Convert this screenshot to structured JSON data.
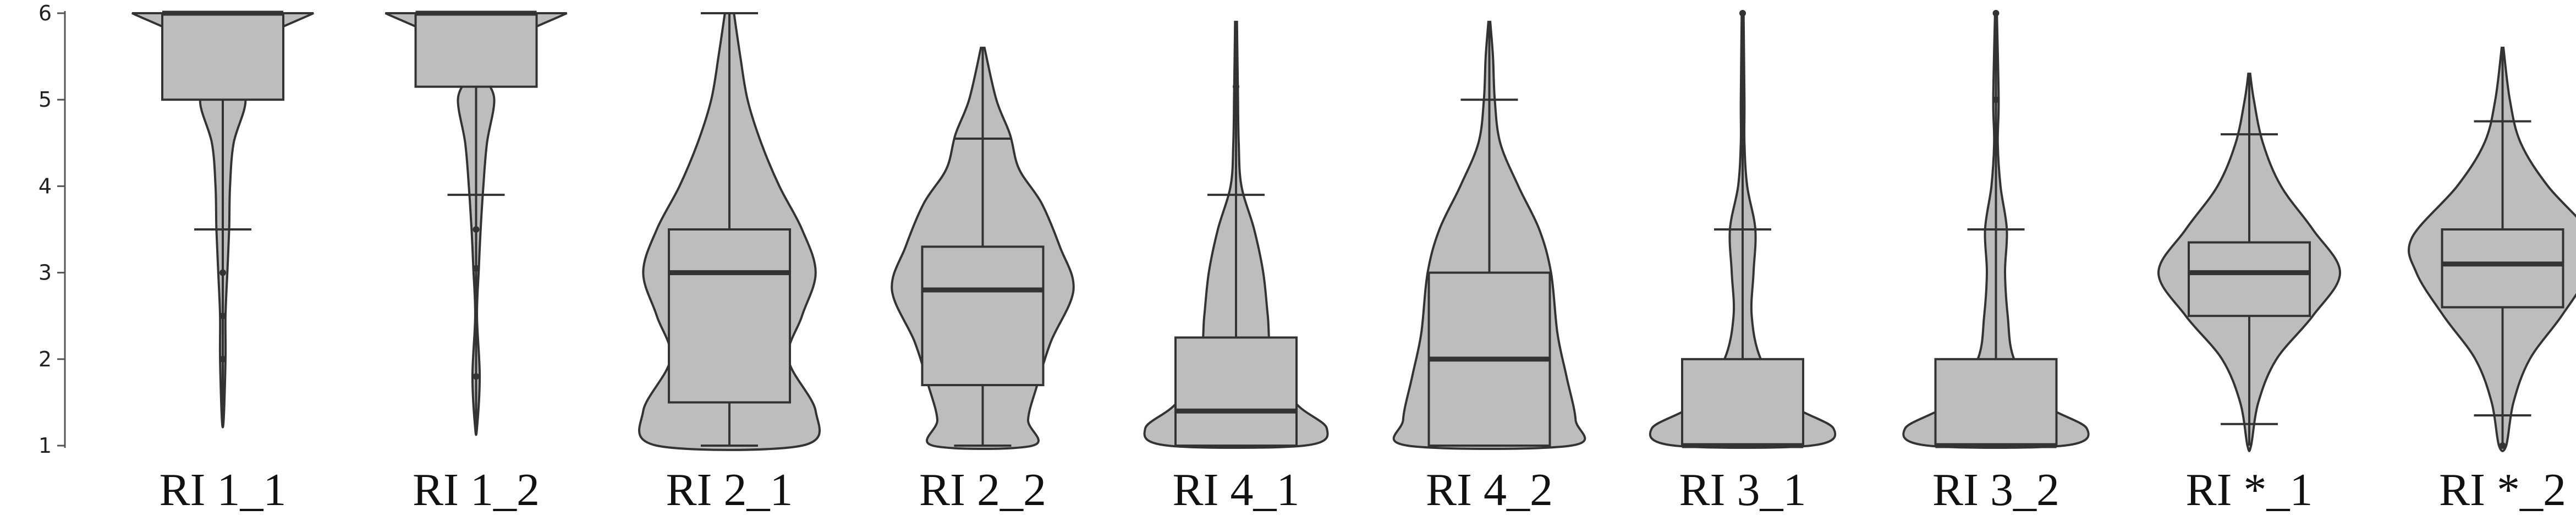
{
  "chart_data": {
    "type": "violin",
    "ylim": [
      1,
      6
    ],
    "yticks": [
      "1",
      "2",
      "3",
      "4",
      "5",
      "6"
    ],
    "categories": [
      "RI 1_1",
      "RI 1_2",
      "RI 2_1",
      "RI 2_2",
      "RI 4_1",
      "RI 4_2",
      "RI 3_1",
      "RI 3_2",
      "RI *_1",
      "RI *_2"
    ],
    "series": [
      {
        "label": "RI 1_1",
        "q1": 5.0,
        "median": 6.0,
        "q3": 6.0,
        "whisker_low": 3.5,
        "whisker_high": 6.0,
        "min": 1.3,
        "max": 6.0,
        "outliers": [
          3.0,
          2.5,
          2.0
        ],
        "density": [
          [
            1.3,
            0.01
          ],
          [
            2.0,
            0.03
          ],
          [
            2.5,
            0.03
          ],
          [
            3.0,
            0.05
          ],
          [
            3.5,
            0.07
          ],
          [
            4.0,
            0.08
          ],
          [
            4.5,
            0.12
          ],
          [
            5.0,
            0.25
          ],
          [
            5.3,
            0.08
          ],
          [
            5.6,
            0.2
          ],
          [
            6.0,
            1.0
          ]
        ]
      },
      {
        "label": "RI 1_2",
        "q1": 5.15,
        "median": 6.0,
        "q3": 6.0,
        "whisker_low": 3.9,
        "whisker_high": 6.0,
        "min": 1.2,
        "max": 6.0,
        "outliers": [
          3.5,
          3.05,
          1.8
        ],
        "density": [
          [
            1.2,
            0.01
          ],
          [
            1.8,
            0.04
          ],
          [
            2.5,
            0.01
          ],
          [
            3.05,
            0.03
          ],
          [
            3.5,
            0.05
          ],
          [
            4.0,
            0.08
          ],
          [
            4.5,
            0.12
          ],
          [
            5.0,
            0.2
          ],
          [
            5.3,
            0.1
          ],
          [
            5.6,
            0.2
          ],
          [
            6.0,
            1.0
          ]
        ]
      },
      {
        "label": "RI 2_1",
        "q1": 1.5,
        "median": 3.0,
        "q3": 3.5,
        "whisker_low": 1.0,
        "whisker_high": 6.0,
        "min": 1.0,
        "max": 6.0,
        "outliers": [],
        "density": [
          [
            1.0,
            0.8
          ],
          [
            1.4,
            0.95
          ],
          [
            2.0,
            0.65
          ],
          [
            2.5,
            0.8
          ],
          [
            3.0,
            0.95
          ],
          [
            3.5,
            0.8
          ],
          [
            4.0,
            0.55
          ],
          [
            4.5,
            0.35
          ],
          [
            5.0,
            0.2
          ],
          [
            5.5,
            0.12
          ],
          [
            6.0,
            0.05
          ]
        ]
      },
      {
        "label": "RI 2_2",
        "q1": 1.7,
        "median": 2.8,
        "q3": 3.3,
        "whisker_low": 1.0,
        "whisker_high": 4.55,
        "min": 1.0,
        "max": 5.6,
        "outliers": [],
        "density": [
          [
            1.0,
            0.55
          ],
          [
            1.3,
            0.5
          ],
          [
            1.7,
            0.6
          ],
          [
            2.2,
            0.75
          ],
          [
            2.8,
            1.0
          ],
          [
            3.3,
            0.85
          ],
          [
            3.8,
            0.65
          ],
          [
            4.2,
            0.4
          ],
          [
            4.6,
            0.3
          ],
          [
            5.0,
            0.15
          ],
          [
            5.6,
            0.02
          ]
        ]
      },
      {
        "label": "RI 4_1",
        "q1": 1.0,
        "median": 1.4,
        "q3": 2.25,
        "whisker_low": 1.0,
        "whisker_high": 3.9,
        "min": 1.0,
        "max": 5.9,
        "outliers": [
          5.15
        ],
        "density": [
          [
            1.0,
            0.75
          ],
          [
            1.2,
            1.0
          ],
          [
            1.5,
            0.65
          ],
          [
            2.0,
            0.4
          ],
          [
            2.5,
            0.35
          ],
          [
            3.0,
            0.3
          ],
          [
            3.5,
            0.2
          ],
          [
            4.0,
            0.06
          ],
          [
            4.5,
            0.03
          ],
          [
            5.15,
            0.02
          ],
          [
            5.9,
            0.01
          ]
        ]
      },
      {
        "label": "RI 4_2",
        "q1": 1.0,
        "median": 2.0,
        "q3": 3.0,
        "whisker_low": 1.0,
        "whisker_high": 5.0,
        "min": 1.0,
        "max": 5.9,
        "outliers": [],
        "density": [
          [
            1.0,
            0.9
          ],
          [
            1.3,
            0.95
          ],
          [
            1.8,
            0.85
          ],
          [
            2.3,
            0.75
          ],
          [
            3.0,
            0.68
          ],
          [
            3.5,
            0.55
          ],
          [
            4.0,
            0.32
          ],
          [
            4.5,
            0.12
          ],
          [
            5.0,
            0.06
          ],
          [
            5.5,
            0.04
          ],
          [
            5.9,
            0.01
          ]
        ]
      },
      {
        "label": "RI 3_1",
        "q1": 1.0,
        "median": 1.0,
        "q3": 2.0,
        "whisker_low": 1.0,
        "whisker_high": 3.5,
        "min": 1.0,
        "max": 6.0,
        "outliers": [
          6.0
        ],
        "density": [
          [
            1.0,
            0.75
          ],
          [
            1.2,
            1.0
          ],
          [
            1.5,
            0.5
          ],
          [
            2.0,
            0.2
          ],
          [
            2.5,
            0.1
          ],
          [
            3.0,
            0.12
          ],
          [
            3.5,
            0.14
          ],
          [
            4.0,
            0.05
          ],
          [
            4.5,
            0.02
          ],
          [
            5.0,
            0.02
          ],
          [
            6.0,
            0.01
          ]
        ]
      },
      {
        "label": "RI 3_2",
        "q1": 1.0,
        "median": 1.0,
        "q3": 2.0,
        "whisker_low": 1.0,
        "whisker_high": 3.5,
        "min": 1.0,
        "max": 6.0,
        "outliers": [
          5.0,
          6.0
        ],
        "density": [
          [
            1.0,
            0.75
          ],
          [
            1.2,
            1.0
          ],
          [
            1.5,
            0.5
          ],
          [
            2.0,
            0.2
          ],
          [
            2.5,
            0.13
          ],
          [
            3.0,
            0.1
          ],
          [
            3.5,
            0.12
          ],
          [
            4.0,
            0.05
          ],
          [
            4.5,
            0.02
          ],
          [
            5.0,
            0.03
          ],
          [
            6.0,
            0.01
          ]
        ]
      },
      {
        "label": "RI *_1",
        "q1": 2.5,
        "median": 3.0,
        "q3": 3.35,
        "whisker_low": 1.25,
        "whisker_high": 4.6,
        "min": 1.0,
        "max": 5.3,
        "outliers": [],
        "density": [
          [
            1.0,
            0.02
          ],
          [
            1.5,
            0.1
          ],
          [
            2.0,
            0.3
          ],
          [
            2.5,
            0.7
          ],
          [
            3.0,
            1.0
          ],
          [
            3.5,
            0.7
          ],
          [
            4.0,
            0.35
          ],
          [
            4.5,
            0.15
          ],
          [
            5.0,
            0.05
          ],
          [
            5.3,
            0.01
          ]
        ]
      },
      {
        "label": "RI *_2",
        "q1": 2.6,
        "median": 3.1,
        "q3": 3.5,
        "whisker_low": 1.35,
        "whisker_high": 4.75,
        "min": 1.0,
        "max": 5.6,
        "outliers": [
          1.0
        ],
        "density": [
          [
            1.0,
            0.04
          ],
          [
            1.5,
            0.12
          ],
          [
            2.0,
            0.3
          ],
          [
            2.5,
            0.65
          ],
          [
            3.0,
            0.95
          ],
          [
            3.4,
            1.0
          ],
          [
            4.0,
            0.5
          ],
          [
            4.5,
            0.2
          ],
          [
            5.0,
            0.08
          ],
          [
            5.6,
            0.01
          ]
        ]
      }
    ]
  }
}
